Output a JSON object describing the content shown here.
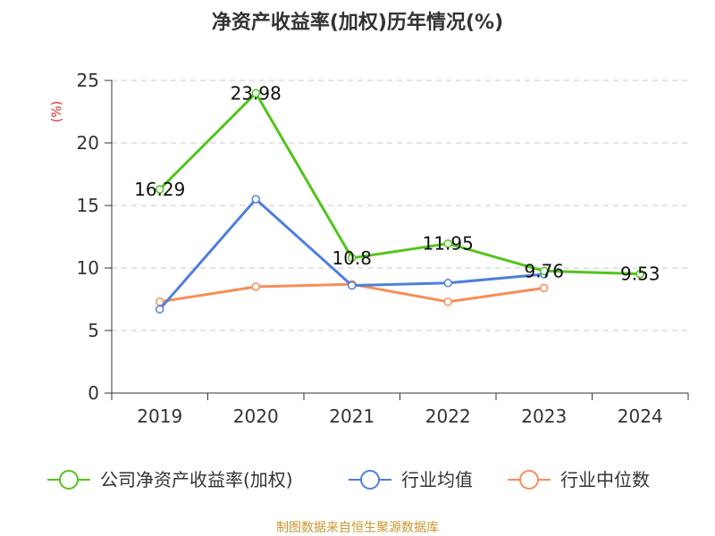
{
  "title": "净资产收益率(加权)历年情况(%)",
  "source": "制图数据来自恒生聚源数据库",
  "colors": {
    "company": "#52c41a",
    "industry_avg": "#4e7fdc",
    "industry_median": "#f78d56",
    "grid": "#c8c8c8",
    "axis": "#333333"
  },
  "chart_data": {
    "type": "line",
    "title": "净资产收益率(加权)历年情况(%)",
    "y_unit": "(%)",
    "categories": [
      "2019",
      "2020",
      "2021",
      "2022",
      "2023",
      "2024"
    ],
    "ylim": [
      0,
      25
    ],
    "yticks": [
      "0",
      "5",
      "10",
      "15",
      "20",
      "25"
    ],
    "grid": true,
    "legend_position": "bottom",
    "series": [
      {
        "name": "公司净资产收益率(加权)",
        "values": [
          16.29,
          23.98,
          10.8,
          11.95,
          9.76,
          9.53
        ],
        "labels": [
          "16.29",
          "23.98",
          "10.8",
          "11.95",
          "9.76",
          "9.53"
        ]
      },
      {
        "name": "行业均值",
        "values": [
          6.7,
          15.5,
          8.6,
          8.8,
          9.5,
          null
        ]
      },
      {
        "name": "行业中位数",
        "values": [
          7.3,
          8.5,
          8.7,
          7.3,
          8.4,
          null
        ]
      }
    ]
  }
}
